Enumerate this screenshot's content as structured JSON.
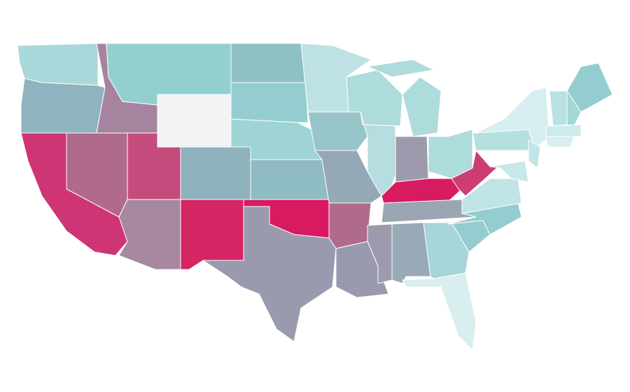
{
  "map": {
    "regions": [
      {
        "color": "#a8d8da"
      },
      {
        "color": "#8fb3bf"
      },
      {
        "color": "#cf3474"
      },
      {
        "color": "#b06b8c"
      },
      {
        "color": "#a684a0"
      },
      {
        "color": "#93cfcf"
      },
      {
        "color": "#f2f3f4"
      },
      {
        "color": "#c44c7c"
      },
      {
        "color": "#8fb2bd"
      },
      {
        "color": "#a887a1"
      },
      {
        "color": "#d62565"
      },
      {
        "color": "#8fc1c4"
      },
      {
        "color": "#93cdcf"
      },
      {
        "color": "#9ed4d4"
      },
      {
        "color": "#8fbcc2"
      },
      {
        "color": "#d81b60"
      },
      {
        "color": "#9a9aae"
      },
      {
        "color": "#bee2e3"
      },
      {
        "color": "#98c5c9"
      },
      {
        "color": "#94a9b5"
      },
      {
        "color": "#b06b8c"
      },
      {
        "color": "#9a9aae"
      },
      {
        "color": "#aedbdc"
      },
      {
        "color": "#b6dde0"
      },
      {
        "color": "#aedbdc"
      },
      {
        "color": "#9d9aae"
      },
      {
        "color": "#aedbdc"
      },
      {
        "color": "#d81b60"
      },
      {
        "color": "#9aa6b4"
      },
      {
        "color": "#9d9aae"
      },
      {
        "color": "#98aab6"
      },
      {
        "color": "#a8d5d7"
      },
      {
        "color": "#d8eeef"
      },
      {
        "color": "#93cdd0"
      },
      {
        "color": "#93cdcf"
      },
      {
        "color": "#c0e4e5"
      },
      {
        "color": "#cc3e73"
      },
      {
        "color": "#b6dfe0"
      },
      {
        "color": "#d6eef0"
      },
      {
        "color": "#c2e4e5"
      },
      {
        "color": "#c8e7e8"
      },
      {
        "color": "#93cdcf"
      },
      {
        "color": "#a3d7d8"
      },
      {
        "color": "#b8e1e2"
      },
      {
        "color": "#cfeaeb"
      },
      {
        "color": "#d8eeef"
      }
    ]
  }
}
